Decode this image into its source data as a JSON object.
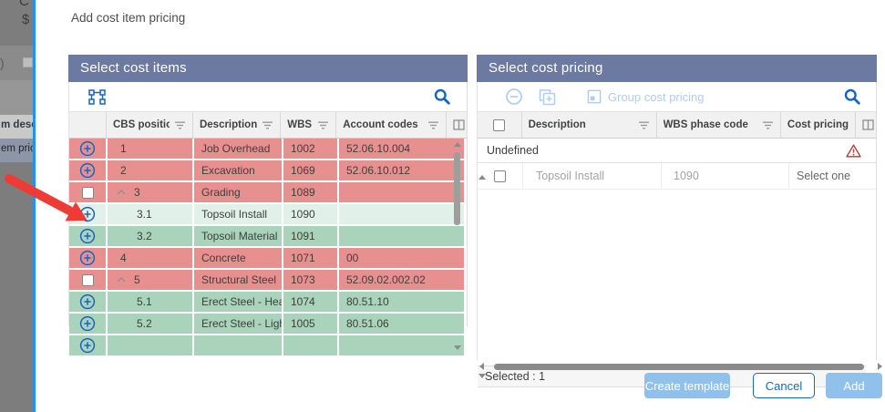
{
  "dialog": {
    "title": "Add cost item pricing"
  },
  "background_app": {
    "text_c": "C",
    "text_dollar": "$",
    "text_paren": ")",
    "text_item_desc": "m descr",
    "text_item_pricing": "em pric"
  },
  "left_panel": {
    "title": "Select cost items",
    "columns": {
      "c1": "CBS position",
      "c2": "Description",
      "c3": "WBS p...",
      "c4": "Account codes"
    },
    "rows": [
      {
        "action": "add",
        "cbs": "1",
        "indent": 0,
        "chevron": false,
        "desc": "Job Overhead",
        "wbs": "1002",
        "account": "52.06.10.004",
        "state": "red"
      },
      {
        "action": "add",
        "cbs": "2",
        "indent": 0,
        "chevron": false,
        "desc": "Excavation",
        "wbs": "1069",
        "account": "52.06.10.012",
        "state": "red"
      },
      {
        "action": "check",
        "cbs": "3",
        "indent": 0,
        "chevron": true,
        "desc": "Grading",
        "wbs": "1089",
        "account": "",
        "state": "red"
      },
      {
        "action": "add",
        "cbs": "3.1",
        "indent": 1,
        "chevron": false,
        "desc": "Topsoil Install",
        "wbs": "1090",
        "account": "",
        "state": "lightgreen"
      },
      {
        "action": "add",
        "cbs": "3.2",
        "indent": 1,
        "chevron": false,
        "desc": "Topsoil Material",
        "wbs": "1091",
        "account": "",
        "state": "green"
      },
      {
        "action": "add",
        "cbs": "4",
        "indent": 0,
        "chevron": false,
        "desc": "Concrete",
        "wbs": "1071",
        "account": "00",
        "state": "red"
      },
      {
        "action": "check",
        "cbs": "5",
        "indent": 0,
        "chevron": true,
        "desc": "Structural Steel",
        "wbs": "1073",
        "account": "52.09.02.002.02",
        "state": "red"
      },
      {
        "action": "add",
        "cbs": "5.1",
        "indent": 1,
        "chevron": false,
        "desc": "Erect Steel - Hea...",
        "wbs": "1074",
        "account": "80.51.10",
        "state": "green"
      },
      {
        "action": "add",
        "cbs": "5.2",
        "indent": 1,
        "chevron": false,
        "desc": "Erect Steel - Light",
        "wbs": "1005",
        "account": "80.51.06",
        "state": "green"
      },
      {
        "action": "add",
        "cbs": "",
        "indent": 0,
        "chevron": false,
        "desc": "",
        "wbs": "",
        "account": "",
        "state": "green",
        "partial": true
      }
    ]
  },
  "right_panel": {
    "title": "Select cost pricing",
    "toolbar": {
      "group_button_label": "Group cost pricing"
    },
    "columns": {
      "c1": "Description",
      "c2": "WBS phase code",
      "c3": "Cost pricing"
    },
    "group_label": "Undefined",
    "rows": [
      {
        "desc": "Topsoil Install",
        "wbs": "1090",
        "pricing": "Select one"
      }
    ],
    "status": "Selected : 1"
  },
  "footer": {
    "create_template": "Create template",
    "cancel": "Cancel",
    "add": "Add"
  },
  "colors": {
    "accent_blue": "#1565c0",
    "header_band": "#6c7aa1",
    "row_red": "#e89090",
    "row_green": "#a9d3ba",
    "row_selected_green": "#e1f0e8",
    "disabled_blue": "#aecdf0",
    "button_blue": "#90c1ec",
    "warning_red": "#b23b33",
    "annotation_arrow": "#ee3b35"
  }
}
